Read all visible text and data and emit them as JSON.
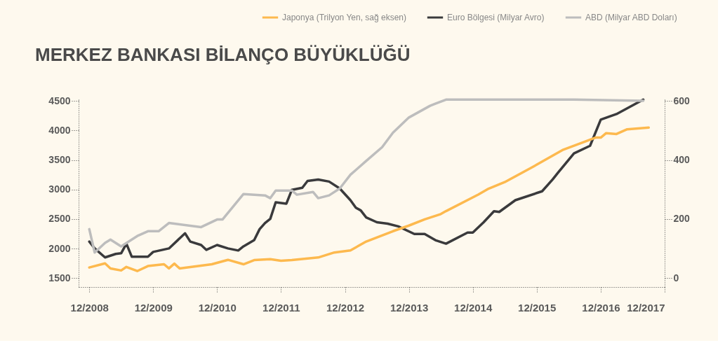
{
  "chart_data": {
    "type": "line",
    "title": "MERKEZ BANKASI BİLANÇO BÜYÜKLÜĞÜ",
    "xlim": [
      "2008-10",
      "2017-12"
    ],
    "xticks": [
      {
        "value": "2008-12",
        "label": "12/2008"
      },
      {
        "value": "2009-12",
        "label": "12/2009"
      },
      {
        "value": "2010-12",
        "label": "12/2010"
      },
      {
        "value": "2011-12",
        "label": "12/2011"
      },
      {
        "value": "2012-12",
        "label": "12/2012"
      },
      {
        "value": "2013-12",
        "label": "12/2013"
      },
      {
        "value": "2014-12",
        "label": "12/2014"
      },
      {
        "value": "2015-12",
        "label": "12/2015"
      },
      {
        "value": "2016-12",
        "label": "12/2016"
      },
      {
        "value": "2017-12",
        "label": "12/2017"
      }
    ],
    "ylim": [
      1350,
      4550
    ],
    "yticks": [
      1500,
      2000,
      2500,
      3000,
      3500,
      4000,
      4500
    ],
    "y2lim": [
      -30,
      610
    ],
    "y2ticks": [
      0,
      200,
      400,
      600
    ],
    "legend": "top right",
    "grid": false,
    "marker": "none",
    "line_style": "solid",
    "series": [
      {
        "name": "Japonya (Trilyon Yen, sağ eksen)",
        "color": "#fdb94e",
        "axis": "y2",
        "x": [
          "2008-12",
          "2009-03",
          "2009-04",
          "2009-06",
          "2009-07",
          "2009-09",
          "2009-11",
          "2010-02",
          "2010-03",
          "2010-04",
          "2010-05",
          "2010-11",
          "2011-02",
          "2011-05",
          "2011-07",
          "2011-10",
          "2011-12",
          "2012-02",
          "2012-07",
          "2012-10",
          "2013-01",
          "2013-04",
          "2013-09",
          "2013-12",
          "2014-03",
          "2014-06",
          "2014-07",
          "2015-01",
          "2015-03",
          "2015-06",
          "2015-11",
          "2016-05",
          "2016-09",
          "2016-11",
          "2016-12",
          "2017-01",
          "2017-03",
          "2017-05",
          "2017-09"
        ],
        "values": [
          36,
          50,
          33,
          26,
          38,
          24,
          41,
          47,
          33,
          49,
          33,
          47,
          62,
          47,
          61,
          64,
          59,
          61,
          70,
          87,
          94,
          124,
          159,
          178,
          199,
          217,
          227,
          283,
          303,
          325,
          374,
          435,
          462,
          476,
          476,
          491,
          488,
          504,
          510
        ]
      },
      {
        "name": "Euro Bölgesi (Milyar Avro)",
        "color": "#3a3a3c",
        "x": [
          "2008-12",
          "2009-01",
          "2009-03",
          "2009-05",
          "2009-06",
          "2009-07",
          "2009-08",
          "2009-11",
          "2009-12",
          "2010-03",
          "2010-06",
          "2010-07",
          "2010-09",
          "2010-10",
          "2010-12",
          "2011-02",
          "2011-04",
          "2011-05",
          "2011-07",
          "2011-08",
          "2011-09",
          "2011-10",
          "2011-11",
          "2012-01",
          "2012-02",
          "2012-04",
          "2012-05",
          "2012-07",
          "2012-09",
          "2012-11",
          "2013-01",
          "2013-02",
          "2013-03",
          "2013-04",
          "2013-06",
          "2013-08",
          "2013-10",
          "2014-01",
          "2014-03",
          "2014-05",
          "2014-07",
          "2014-11",
          "2014-12",
          "2015-02",
          "2015-04",
          "2015-05",
          "2015-08",
          "2016-01",
          "2016-03",
          "2016-04",
          "2016-07",
          "2016-10",
          "2016-12",
          "2017-03",
          "2017-08"
        ],
        "values": [
          2119,
          2003,
          1851,
          1910,
          1921,
          2084,
          1862,
          1862,
          1944,
          2003,
          2259,
          2119,
          2061,
          1979,
          2061,
          2003,
          1968,
          2038,
          2143,
          2329,
          2434,
          2504,
          2784,
          2761,
          2994,
          3030,
          3146,
          3170,
          3135,
          3018,
          2820,
          2692,
          2646,
          2528,
          2446,
          2423,
          2376,
          2248,
          2248,
          2143,
          2084,
          2271,
          2271,
          2446,
          2633,
          2621,
          2820,
          2971,
          3170,
          3286,
          3613,
          3741,
          4185,
          4278,
          4523
        ]
      },
      {
        "name": "ABD (Milyar ABD Doları)",
        "color": "#bdbdbd",
        "x": [
          "2008-12",
          "2009-01",
          "2009-03",
          "2009-04",
          "2009-06",
          "2009-09",
          "2009-11",
          "2010-01",
          "2010-03",
          "2010-09",
          "2010-12",
          "2011-01",
          "2011-05",
          "2011-09",
          "2011-10",
          "2011-11",
          "2012-02",
          "2012-03",
          "2012-06",
          "2012-07",
          "2012-09",
          "2012-11",
          "2013-01",
          "2013-04",
          "2013-07",
          "2013-09",
          "2013-12",
          "2014-04",
          "2014-05",
          "2014-07",
          "2016-07",
          "2017-08"
        ],
        "values": [
          2329,
          1933,
          2096,
          2154,
          2038,
          2213,
          2294,
          2294,
          2434,
          2364,
          2493,
          2493,
          2924,
          2901,
          2854,
          2983,
          2983,
          2913,
          2960,
          2854,
          2901,
          3018,
          3251,
          3485,
          3718,
          3963,
          4220,
          4418,
          4453,
          4523,
          4523,
          4504
        ]
      }
    ]
  }
}
